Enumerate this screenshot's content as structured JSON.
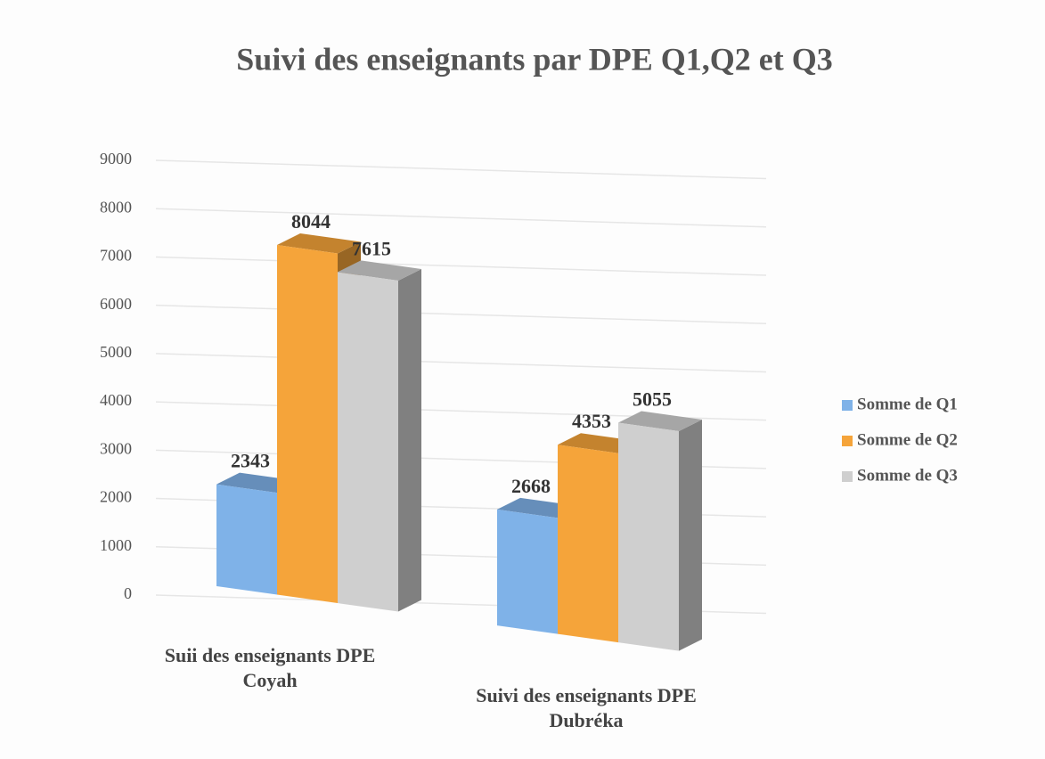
{
  "chart_data": {
    "type": "bar3d",
    "title": "Suivi des enseignants par DPE Q1,Q2 et Q3",
    "categories": [
      "Suii des enseignants DPE Coyah",
      "Suivi des enseignants DPE Dubréka"
    ],
    "series": [
      {
        "name": "Somme de Q1",
        "color": "#7fb2e8",
        "values": [
          2343,
          2668
        ]
      },
      {
        "name": "Somme de Q2",
        "color": "#f5a43a",
        "values": [
          8044,
          4353
        ]
      },
      {
        "name": "Somme de Q3",
        "color": "#cfcfcf",
        "values": [
          7615,
          5055
        ]
      }
    ],
    "ylim": [
      0,
      9000
    ],
    "yticks": [
      0,
      1000,
      2000,
      3000,
      4000,
      5000,
      6000,
      7000,
      8000,
      9000
    ],
    "grid": true,
    "legend": "right"
  }
}
